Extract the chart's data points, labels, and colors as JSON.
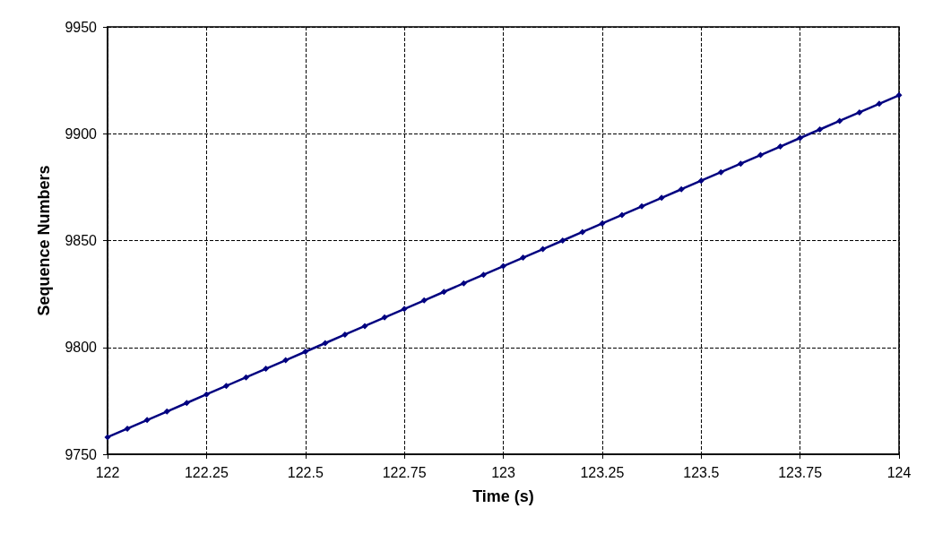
{
  "chart_data": {
    "type": "line",
    "xlabel": "Time (s)",
    "ylabel": "Sequence Numbers",
    "x": [
      122,
      122.05,
      122.1,
      122.15,
      122.2,
      122.25,
      122.3,
      122.35,
      122.4,
      122.45,
      122.5,
      122.55,
      122.6,
      122.65,
      122.7,
      122.75,
      122.8,
      122.85,
      122.9,
      122.95,
      123,
      123.05,
      123.1,
      123.15,
      123.2,
      123.25,
      123.3,
      123.35,
      123.4,
      123.45,
      123.5,
      123.55,
      123.6,
      123.65,
      123.7,
      123.75,
      123.8,
      123.85,
      123.9,
      123.95,
      124
    ],
    "series": [
      {
        "color": "#000080",
        "values": [
          9758,
          9762,
          9766,
          9770,
          9774,
          9778,
          9782,
          9786,
          9790,
          9794,
          9798,
          9802,
          9806,
          9810,
          9814,
          9818,
          9822,
          9826,
          9830,
          9834,
          9838,
          9842,
          9846,
          9850,
          9854,
          9858,
          9862,
          9866,
          9870,
          9874,
          9878,
          9882,
          9886,
          9890,
          9894,
          9898,
          9902,
          9906,
          9910,
          9914,
          9918
        ]
      }
    ],
    "xlim": [
      122,
      124
    ],
    "xticks": [
      122,
      122.25,
      122.5,
      122.75,
      123,
      123.25,
      123.5,
      123.75,
      124
    ],
    "ylim": [
      9750,
      9950
    ],
    "yticks": [
      9750,
      9800,
      9850,
      9900,
      9950
    ],
    "grid": true,
    "marker": "diamond",
    "line_style": "solid"
  }
}
